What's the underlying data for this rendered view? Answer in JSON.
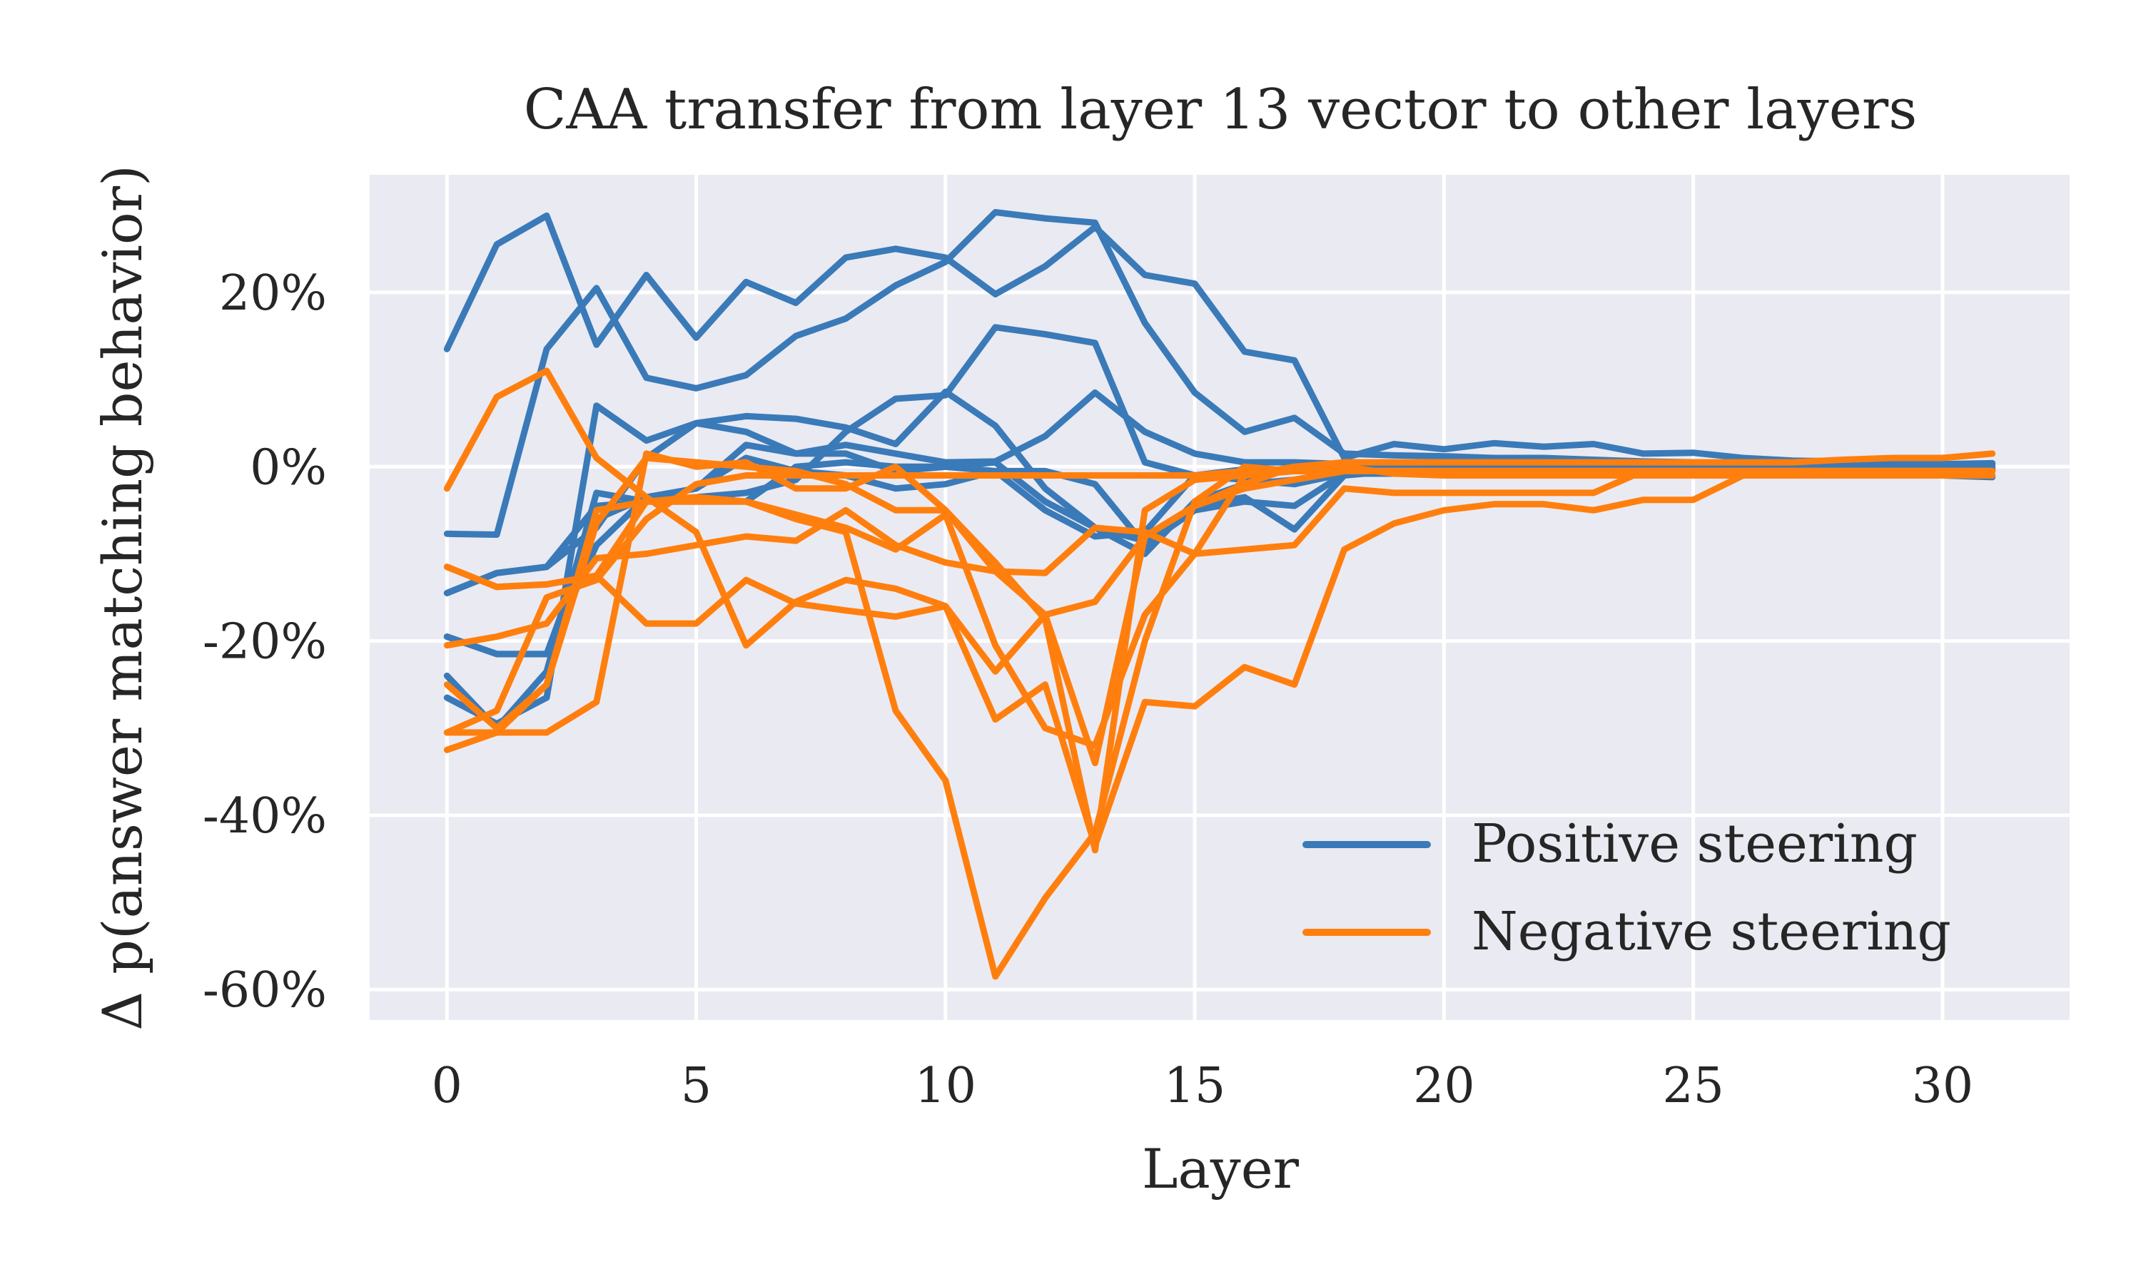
{
  "chart_data": {
    "type": "line",
    "title": "CAA transfer from layer 13 vector to other layers",
    "xlabel": "Layer",
    "ylabel": "Δ p(answer matching behavior)",
    "xlim": [
      -1.55,
      32.55
    ],
    "ylim": [
      -63.5,
      33.5
    ],
    "x_ticks": [
      0,
      5,
      10,
      15,
      20,
      25,
      30
    ],
    "y_ticks": [
      -60,
      -40,
      -20,
      0,
      20
    ],
    "y_tick_labels": [
      "-60%",
      "-40%",
      "-20%",
      "0%",
      "20%"
    ],
    "grid": true,
    "legend_position": "lower-right",
    "legend": [
      {
        "label": "Positive steering",
        "color": "#3a7ab8"
      },
      {
        "label": "Negative steering",
        "color": "#ff7f0e"
      }
    ],
    "colors": {
      "positive": "#3a7ab8",
      "negative": "#ff7f0e",
      "plot_background": "#eaeaf2",
      "grid": "#ffffff"
    },
    "x": [
      0,
      1,
      2,
      3,
      4,
      5,
      6,
      7,
      8,
      9,
      10,
      11,
      12,
      13,
      14,
      15,
      16,
      17,
      18,
      19,
      20,
      21,
      22,
      23,
      24,
      25,
      26,
      27,
      28,
      29,
      30,
      31
    ],
    "series": [
      {
        "group": "positive",
        "values": [
          13.5,
          25.5,
          28.8,
          14,
          22,
          14.8,
          21.2,
          18.8,
          24,
          25,
          24,
          19.8,
          23,
          27.5,
          22,
          21,
          13.2,
          12.2,
          1,
          2.6,
          2,
          2.7,
          2.3,
          2.6,
          1.5,
          1.6,
          1,
          0.7,
          0.6,
          0.4,
          0.3,
          0.4
        ]
      },
      {
        "group": "positive",
        "values": [
          -26.5,
          -29.5,
          -26.5,
          7,
          3,
          5,
          4,
          1.5,
          2.5,
          1.5,
          0.5,
          0.6,
          3.5,
          8.5,
          4,
          1.5,
          0.5,
          0.5,
          0.3,
          0,
          0,
          -0.2,
          -0.2,
          0,
          0,
          0,
          0,
          0,
          0,
          0,
          0,
          0
        ]
      },
      {
        "group": "positive",
        "values": [
          -19.5,
          -21.5,
          -21.5,
          -6,
          -3.5,
          -2.5,
          2.5,
          1.5,
          1.5,
          -0.5,
          0,
          -0.5,
          -5,
          -8,
          -7.5,
          -1,
          -0.3,
          -0.5,
          -0.5,
          -0.3,
          -0.3,
          -0.3,
          -0.3,
          -0.3,
          -0.2,
          -0.2,
          -0.2,
          -0.2,
          -0.2,
          -0.2,
          -0.2,
          -0.2
        ]
      },
      {
        "group": "positive",
        "values": [
          -24,
          -30,
          -23.5,
          -3,
          -4,
          -4,
          -4,
          0,
          0.5,
          0,
          0,
          0.5,
          -4,
          -7,
          -8.5,
          -4.5,
          -3.5,
          -7.2,
          -1,
          -0.5,
          -0.3,
          -0.3,
          -0.3,
          -0.3,
          -0.3,
          -0.3,
          -0.3,
          -0.3,
          -0.3,
          -0.3,
          -0.3,
          -0.3
        ]
      },
      {
        "group": "positive",
        "values": [
          -7.7,
          -7.8,
          13.5,
          20.5,
          10.2,
          9,
          10.5,
          15,
          17,
          20.8,
          23.5,
          29.2,
          28.5,
          28,
          16.5,
          8.5,
          4,
          5.6,
          1.5,
          1.3,
          1.2,
          1,
          1,
          0.8,
          0.6,
          0.5,
          0.4,
          0.4,
          0.3,
          0.3,
          0.3,
          0.3
        ]
      },
      {
        "group": "positive",
        "values": [
          -14.5,
          -12.2,
          -11.5,
          -4.5,
          -4,
          -3.5,
          -3,
          -1.5,
          4,
          7.8,
          8.2,
          16,
          15.2,
          14.2,
          0.5,
          -1,
          -1.5,
          -2,
          -0.8,
          -0.6,
          -0.5,
          -0.5,
          -0.5,
          -0.5,
          -0.5,
          -0.5,
          -0.5,
          -0.5,
          -0.5,
          -0.5,
          -0.5,
          -0.5
        ]
      },
      {
        "group": "positive",
        "values": [
          -19.5,
          -21.5,
          -21.5,
          -9,
          -3.5,
          -2.5,
          1,
          -0.5,
          -1,
          -2.5,
          -2,
          -0.5,
          -0.5,
          -2,
          -9,
          -5,
          -4,
          -4.5,
          -0.8,
          -0.8,
          -0.8,
          -0.8,
          -0.8,
          -0.8,
          -0.8,
          -0.8,
          -0.8,
          -0.8,
          -1,
          -1,
          -1,
          -1.2
        ]
      },
      {
        "group": "positive",
        "values": [
          -14.5,
          -12.2,
          -11.5,
          -7,
          1,
          5,
          5.8,
          5.5,
          4.5,
          2.6,
          8.6,
          4.7,
          -2.5,
          -7,
          -10,
          -4,
          -2,
          -1.5,
          -0.5,
          -0.5,
          -0.5,
          -0.5,
          -0.5,
          -0.5,
          -0.5,
          -0.5,
          -0.5,
          -0.5,
          -0.5,
          -0.5,
          -0.5,
          -0.5
        ]
      },
      {
        "group": "negative",
        "values": [
          -2.5,
          8,
          11,
          1,
          -3.5,
          -7.5,
          -20.5,
          -15.5,
          -13,
          -14,
          -16,
          -23.5,
          -17,
          -15.5,
          -8,
          -4.5,
          -2,
          0,
          0.5,
          0.5,
          0.5,
          0.5,
          0.5,
          0.5,
          0.5,
          0.5,
          0.5,
          0.5,
          0.8,
          1,
          1,
          1.5
        ]
      },
      {
        "group": "negative",
        "values": [
          -11.5,
          -13.8,
          -13.5,
          -12.5,
          -18,
          -18,
          -13,
          -15.7,
          -16.5,
          -17.2,
          -16,
          -29,
          -25,
          -43.5,
          -27,
          -27.5,
          -23,
          -25,
          -9.5,
          -6.5,
          -5,
          -4.3,
          -4.3,
          -5,
          -3.8,
          -3.8,
          -1,
          -1,
          -0.5,
          -0.5,
          -0.5,
          -0.5
        ]
      },
      {
        "group": "negative",
        "values": [
          -20.5,
          -19.5,
          -18,
          -10.5,
          -10,
          -9,
          -8,
          -8.5,
          -5,
          -9,
          -11,
          -12,
          -12.2,
          -7,
          -7.5,
          -10,
          -9.5,
          -9,
          -2.5,
          -3,
          -3,
          -3,
          -3,
          -3,
          -0.5,
          -0.5,
          -0.5,
          -0.5,
          -0.5,
          -0.5,
          -0.5,
          -0.5
        ]
      },
      {
        "group": "negative",
        "values": [
          -32.5,
          -30.5,
          -30.5,
          -27,
          1.5,
          0,
          0.5,
          -2.5,
          -2.5,
          0,
          -5,
          -11,
          -17.5,
          -44,
          -5,
          -1.5,
          -1,
          -0.5,
          -0.5,
          -0.5,
          -0.5,
          -0.5,
          -0.5,
          -0.5,
          -0.5,
          -0.5,
          -0.5,
          -0.5,
          -0.5,
          -0.5,
          -0.5,
          -0.5
        ]
      },
      {
        "group": "negative",
        "values": [
          -30.5,
          -30.5,
          -25,
          -5,
          -4,
          -4,
          -4,
          -6,
          -7.5,
          -28,
          -36,
          -58.5,
          -49.5,
          -42,
          -20,
          -4,
          0,
          -0.5,
          -0.5,
          -0.5,
          -0.5,
          -0.5,
          -0.5,
          -0.5,
          -0.5,
          -0.5,
          -0.5,
          -0.5,
          -0.5,
          -0.5,
          -0.5,
          -0.5
        ]
      },
      {
        "group": "negative",
        "values": [
          -30.5,
          -28,
          -15,
          -13,
          -6,
          -2,
          -1,
          -1,
          -1,
          -1,
          -1,
          -1,
          -1,
          -1,
          -1,
          -1,
          -0.5,
          -0.5,
          -0.5,
          -0.5,
          -0.5,
          -0.5,
          -0.5,
          -0.5,
          -0.5,
          -0.5,
          -0.5,
          -0.5,
          -0.5,
          -0.5,
          -0.5,
          -0.5
        ]
      },
      {
        "group": "negative",
        "values": [
          -11.5,
          -13.8,
          -13.5,
          -12.5,
          -4,
          -3.5,
          -4,
          -5.5,
          -7,
          -9.5,
          -5.5,
          -20.5,
          -30,
          -32,
          -17,
          -10,
          -1,
          0,
          0,
          -0.8,
          -1,
          -1,
          -1,
          -1,
          -1,
          -1,
          -1,
          -1,
          -1,
          -1,
          -1,
          -1
        ]
      },
      {
        "group": "negative",
        "values": [
          -25,
          -30,
          -25,
          -6.5,
          1,
          0.5,
          0,
          -0.5,
          -2,
          -5,
          -5,
          -12,
          -17,
          -34,
          -8,
          -4.5,
          -2.5,
          -1.5,
          -0.5,
          -0.5,
          -0.5,
          -0.5,
          -0.5,
          -0.5,
          -0.5,
          -0.5,
          -0.5,
          -0.5,
          -0.5,
          -0.5,
          -0.5,
          -0.5
        ]
      }
    ]
  }
}
